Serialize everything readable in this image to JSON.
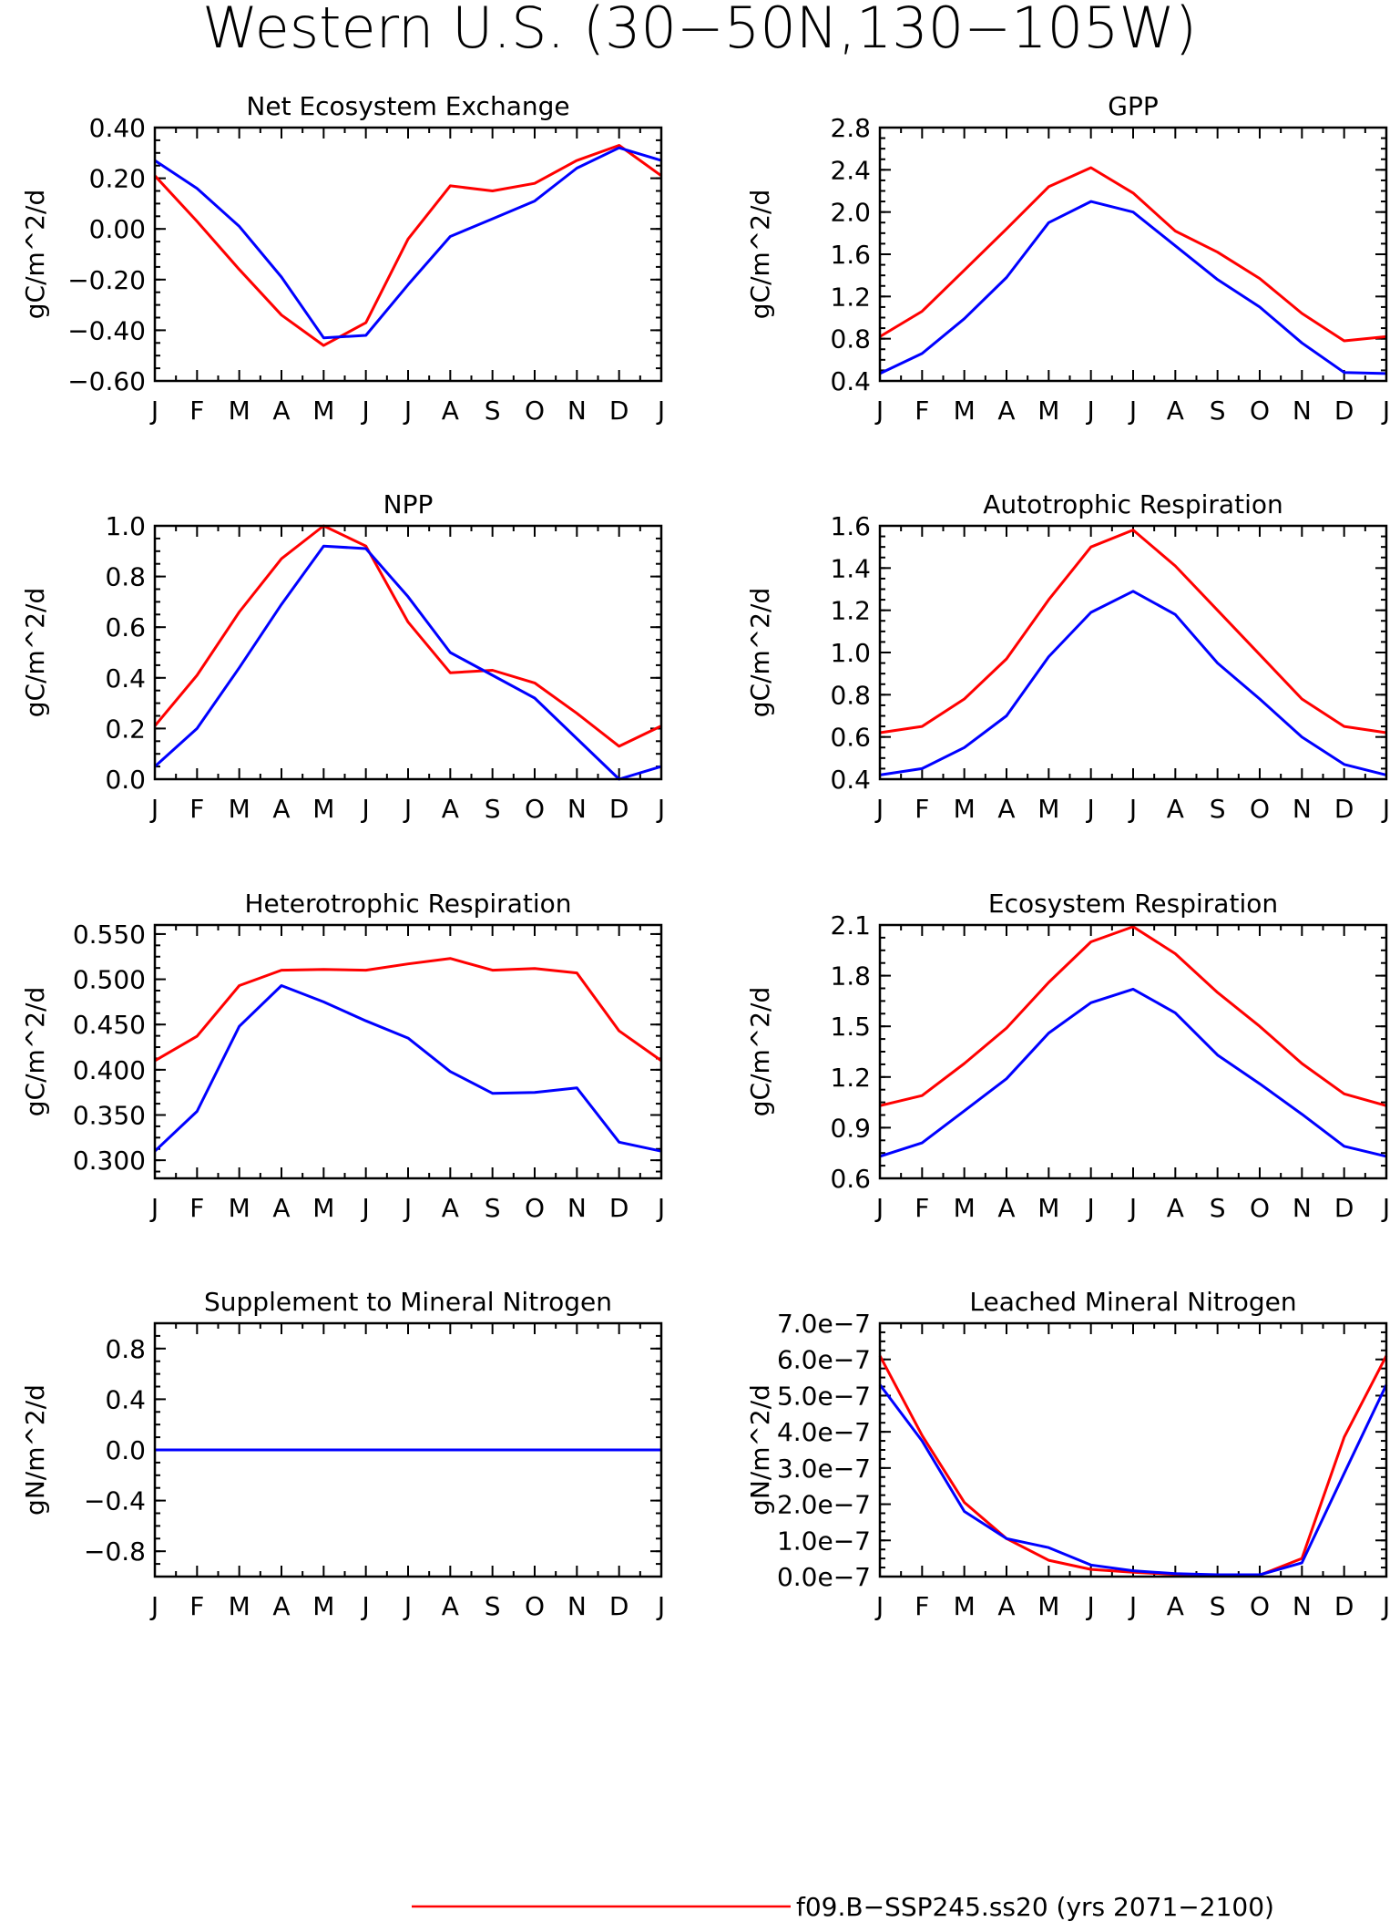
{
  "title": "Western U.S. (30−50N,130−105W)",
  "months": [
    "J",
    "F",
    "M",
    "A",
    "M",
    "J",
    "J",
    "A",
    "S",
    "O",
    "N",
    "D",
    "J"
  ],
  "colors": {
    "series_a": "#ff0000",
    "series_b": "#0000ff",
    "axis": "#000000"
  },
  "legend": [
    {
      "label": "f09.B−SSP245.ss20 (yrs 2071−2100)",
      "color": "#ff0000"
    }
  ],
  "chart_data": [
    {
      "type": "line",
      "title": "Net Ecosystem Exchange",
      "ylabel": "gC/m^2/d",
      "ylim": [
        -0.6,
        0.4
      ],
      "yticks": [
        0.4,
        0.2,
        0.0,
        -0.2,
        -0.4,
        -0.6
      ],
      "ytick_labels": [
        "0.40",
        "0.20",
        "0.00",
        "−0.20",
        "−0.40",
        "−0.60"
      ],
      "series": [
        {
          "color": "#ff0000",
          "values": [
            0.21,
            0.03,
            -0.16,
            -0.34,
            -0.46,
            -0.37,
            -0.04,
            0.17,
            0.15,
            0.18,
            0.27,
            0.33,
            0.21
          ]
        },
        {
          "color": "#0000ff",
          "values": [
            0.27,
            0.16,
            0.01,
            -0.19,
            -0.43,
            -0.42,
            -0.22,
            -0.03,
            0.04,
            0.11,
            0.24,
            0.32,
            0.27
          ]
        }
      ]
    },
    {
      "type": "line",
      "title": "GPP",
      "ylabel": "gC/m^2/d",
      "ylim": [
        0.4,
        2.8
      ],
      "yticks": [
        2.8,
        2.4,
        2.0,
        1.6,
        1.2,
        0.8,
        0.4
      ],
      "ytick_labels": [
        "2.8",
        "2.4",
        "2.0",
        "1.6",
        "1.2",
        "0.8",
        "0.4"
      ],
      "series": [
        {
          "color": "#ff0000",
          "values": [
            0.82,
            1.06,
            1.45,
            1.84,
            2.24,
            2.42,
            2.18,
            1.82,
            1.62,
            1.37,
            1.04,
            0.78,
            0.82
          ]
        },
        {
          "color": "#0000ff",
          "values": [
            0.47,
            0.66,
            0.99,
            1.38,
            1.9,
            2.1,
            2.0,
            1.68,
            1.36,
            1.1,
            0.76,
            0.48,
            0.47
          ]
        }
      ]
    },
    {
      "type": "line",
      "title": "NPP",
      "ylabel": "gC/m^2/d",
      "ylim": [
        0.0,
        1.0
      ],
      "yticks": [
        1.0,
        0.8,
        0.6,
        0.4,
        0.2,
        0.0
      ],
      "ytick_labels": [
        "1.0",
        "0.8",
        "0.6",
        "0.4",
        "0.2",
        "0.0"
      ],
      "series": [
        {
          "color": "#ff0000",
          "values": [
            0.21,
            0.41,
            0.66,
            0.87,
            1.0,
            0.92,
            0.62,
            0.42,
            0.43,
            0.38,
            0.26,
            0.13,
            0.21
          ]
        },
        {
          "color": "#0000ff",
          "values": [
            0.05,
            0.2,
            0.44,
            0.69,
            0.92,
            0.91,
            0.72,
            0.5,
            0.41,
            0.32,
            0.16,
            0.0,
            0.05
          ]
        }
      ]
    },
    {
      "type": "line",
      "title": "Autotrophic Respiration",
      "ylabel": "gC/m^2/d",
      "ylim": [
        0.4,
        1.6
      ],
      "yticks": [
        1.6,
        1.4,
        1.2,
        1.0,
        0.8,
        0.6,
        0.4
      ],
      "ytick_labels": [
        "1.6",
        "1.4",
        "1.2",
        "1.0",
        "0.8",
        "0.6",
        "0.4"
      ],
      "series": [
        {
          "color": "#ff0000",
          "values": [
            0.62,
            0.65,
            0.78,
            0.97,
            1.25,
            1.5,
            1.58,
            1.41,
            1.2,
            0.99,
            0.78,
            0.65,
            0.62
          ]
        },
        {
          "color": "#0000ff",
          "values": [
            0.42,
            0.45,
            0.55,
            0.7,
            0.98,
            1.19,
            1.29,
            1.18,
            0.95,
            0.78,
            0.6,
            0.47,
            0.42
          ]
        }
      ]
    },
    {
      "type": "line",
      "title": "Heterotrophic Respiration",
      "ylabel": "gC/m^2/d",
      "ylim": [
        0.28,
        0.56
      ],
      "yticks": [
        0.55,
        0.5,
        0.45,
        0.4,
        0.35,
        0.3
      ],
      "ytick_labels": [
        "0.550",
        "0.500",
        "0.450",
        "0.400",
        "0.350",
        "0.300"
      ],
      "series": [
        {
          "color": "#ff0000",
          "values": [
            0.41,
            0.437,
            0.493,
            0.51,
            0.511,
            0.51,
            0.517,
            0.523,
            0.51,
            0.512,
            0.507,
            0.443,
            0.41
          ]
        },
        {
          "color": "#0000ff",
          "values": [
            0.31,
            0.354,
            0.448,
            0.493,
            0.475,
            0.454,
            0.435,
            0.398,
            0.374,
            0.375,
            0.38,
            0.32,
            0.31
          ]
        }
      ]
    },
    {
      "type": "line",
      "title": "Ecosystem Respiration",
      "ylabel": "gC/m^2/d",
      "ylim": [
        0.6,
        2.1
      ],
      "yticks": [
        2.1,
        1.8,
        1.5,
        1.2,
        0.9,
        0.6
      ],
      "ytick_labels": [
        "2.1",
        "1.8",
        "1.5",
        "1.2",
        "0.9",
        "0.6"
      ],
      "series": [
        {
          "color": "#ff0000",
          "values": [
            1.03,
            1.09,
            1.28,
            1.49,
            1.76,
            2.0,
            2.09,
            1.93,
            1.7,
            1.5,
            1.28,
            1.1,
            1.03
          ]
        },
        {
          "color": "#0000ff",
          "values": [
            0.73,
            0.81,
            1.0,
            1.19,
            1.46,
            1.64,
            1.72,
            1.58,
            1.33,
            1.16,
            0.98,
            0.79,
            0.73
          ]
        }
      ]
    },
    {
      "type": "line",
      "title": "Supplement to Mineral Nitrogen",
      "ylabel": "gN/m^2/d",
      "ylim": [
        -1.0,
        1.0
      ],
      "yticks": [
        0.8,
        0.4,
        0.0,
        -0.4,
        -0.8
      ],
      "ytick_labels": [
        "0.8",
        "0.4",
        "0.0",
        "−0.4",
        "−0.8"
      ],
      "series": [
        {
          "color": "#ff0000",
          "values": [
            0,
            0,
            0,
            0,
            0,
            0,
            0,
            0,
            0,
            0,
            0,
            0,
            0
          ]
        },
        {
          "color": "#0000ff",
          "values": [
            0,
            0,
            0,
            0,
            0,
            0,
            0,
            0,
            0,
            0,
            0,
            0,
            0
          ]
        }
      ]
    },
    {
      "type": "line",
      "title": "Leached Mineral Nitrogen",
      "ylabel": "gN/m^2/d",
      "ylim": [
        0.0,
        7e-07
      ],
      "yticks": [
        7e-07,
        6e-07,
        5e-07,
        4e-07,
        3e-07,
        2e-07,
        1e-07,
        0.0
      ],
      "ytick_labels": [
        "7.0e−7",
        "6.0e−7",
        "5.0e−7",
        "4.0e−7",
        "3.0e−7",
        "2.0e−7",
        "1.0e−7",
        "0.0e−7"
      ],
      "series": [
        {
          "color": "#ff0000",
          "values": [
            6.1e-07,
            3.9e-07,
            2.05e-07,
            1.05e-07,
            4.5e-08,
            2e-08,
            1.2e-08,
            6e-09,
            4e-09,
            4e-09,
            5e-08,
            3.85e-07,
            6.1e-07
          ]
        },
        {
          "color": "#0000ff",
          "values": [
            5.3e-07,
            3.75e-07,
            1.8e-07,
            1.05e-07,
            8e-08,
            3.2e-08,
            1.6e-08,
            8e-09,
            5e-09,
            5e-09,
            3.8e-08,
            2.85e-07,
            5.3e-07
          ]
        }
      ]
    }
  ]
}
